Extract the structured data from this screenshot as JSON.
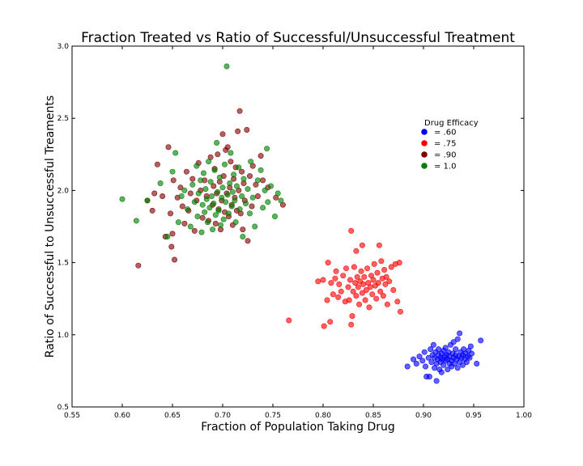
{
  "chart_data": {
    "type": "scatter",
    "title": "Fraction Treated vs Ratio of Successful/Unsuccessful Treatment",
    "xlabel": "Fraction of Population Taking Drug",
    "ylabel": "Ratio of Successful to Unsuccessful Treaments",
    "xlim": [
      0.55,
      1.0
    ],
    "ylim": [
      0.5,
      3.0
    ],
    "xticks": [
      "0.55",
      "0.60",
      "0.65",
      "0.70",
      "0.75",
      "0.80",
      "0.85",
      "0.90",
      "0.95",
      "1.00"
    ],
    "yticks": [
      "0.5",
      "1.0",
      "1.5",
      "2.0",
      "2.5",
      "3.0"
    ],
    "grid": false,
    "legend": {
      "title": "Drug Efficacy",
      "position": "upper-right-inside",
      "entries": [
        "= .60",
        "= .75",
        "= .90",
        "= 1.0"
      ]
    },
    "series": [
      {
        "name": "= .60",
        "color": "#0000ff",
        "points": [
          [
            0.884,
            0.78
          ],
          [
            0.89,
            0.83
          ],
          [
            0.893,
            0.8
          ],
          [
            0.896,
            0.85
          ],
          [
            0.899,
            0.82
          ],
          [
            0.901,
            0.88
          ],
          [
            0.902,
            0.78
          ],
          [
            0.903,
            0.71
          ],
          [
            0.905,
            0.84
          ],
          [
            0.906,
            0.71
          ],
          [
            0.907,
            0.9
          ],
          [
            0.908,
            0.81
          ],
          [
            0.909,
            0.86
          ],
          [
            0.91,
            0.93
          ],
          [
            0.911,
            0.77
          ],
          [
            0.911,
            0.84
          ],
          [
            0.912,
            0.88
          ],
          [
            0.913,
            0.8
          ],
          [
            0.913,
            0.68
          ],
          [
            0.914,
            0.83
          ],
          [
            0.915,
            0.86
          ],
          [
            0.915,
            0.9
          ],
          [
            0.916,
            0.76
          ],
          [
            0.917,
            0.84
          ],
          [
            0.917,
            0.81
          ],
          [
            0.918,
            0.87
          ],
          [
            0.918,
            0.74
          ],
          [
            0.919,
            0.83
          ],
          [
            0.92,
            0.89
          ],
          [
            0.92,
            0.79
          ],
          [
            0.921,
            0.85
          ],
          [
            0.922,
            0.82
          ],
          [
            0.922,
            0.91
          ],
          [
            0.923,
            0.86
          ],
          [
            0.924,
            0.76
          ],
          [
            0.924,
            0.83
          ],
          [
            0.925,
            0.88
          ],
          [
            0.926,
            0.8
          ],
          [
            0.926,
            0.85
          ],
          [
            0.927,
            0.93
          ],
          [
            0.928,
            0.82
          ],
          [
            0.928,
            0.78
          ],
          [
            0.929,
            0.87
          ],
          [
            0.93,
            0.84
          ],
          [
            0.93,
            0.95
          ],
          [
            0.931,
            0.8
          ],
          [
            0.932,
            0.86
          ],
          [
            0.932,
            0.9
          ],
          [
            0.933,
            0.83
          ],
          [
            0.934,
            0.77
          ],
          [
            0.934,
            0.97
          ],
          [
            0.935,
            0.85
          ],
          [
            0.936,
            0.81
          ],
          [
            0.936,
            1.01
          ],
          [
            0.937,
            0.88
          ],
          [
            0.938,
            0.84
          ],
          [
            0.939,
            0.79
          ],
          [
            0.939,
            0.86
          ],
          [
            0.94,
            0.9
          ],
          [
            0.941,
            0.83
          ],
          [
            0.942,
            0.87
          ],
          [
            0.943,
            0.81
          ],
          [
            0.944,
            0.85
          ],
          [
            0.945,
            0.89
          ],
          [
            0.946,
            0.84
          ],
          [
            0.947,
            0.92
          ],
          [
            0.948,
            0.87
          ],
          [
            0.953,
            0.8
          ],
          [
            0.957,
            0.96
          ]
        ]
      },
      {
        "name": "= .75",
        "color": "#ff0000",
        "points": [
          [
            0.766,
            1.1
          ],
          [
            0.795,
            1.37
          ],
          [
            0.8,
            1.38
          ],
          [
            0.801,
            1.06
          ],
          [
            0.804,
            1.24
          ],
          [
            0.805,
            1.5
          ],
          [
            0.807,
            1.09
          ],
          [
            0.808,
            1.36
          ],
          [
            0.81,
            1.28
          ],
          [
            0.812,
            1.39
          ],
          [
            0.813,
            1.44
          ],
          [
            0.815,
            1.26
          ],
          [
            0.816,
            1.35
          ],
          [
            0.818,
            1.3
          ],
          [
            0.82,
            1.41
          ],
          [
            0.822,
            1.23
          ],
          [
            0.823,
            1.46
          ],
          [
            0.825,
            1.33
          ],
          [
            0.826,
            1.24
          ],
          [
            0.827,
            1.38
          ],
          [
            0.828,
            1.72
          ],
          [
            0.828,
            1.07
          ],
          [
            0.829,
            1.13
          ],
          [
            0.83,
            1.3
          ],
          [
            0.831,
            1.47
          ],
          [
            0.832,
            1.36
          ],
          [
            0.833,
            1.27
          ],
          [
            0.833,
            1.58
          ],
          [
            0.834,
            1.4
          ],
          [
            0.835,
            1.33
          ],
          [
            0.836,
            1.21
          ],
          [
            0.837,
            1.37
          ],
          [
            0.838,
            1.44
          ],
          [
            0.839,
            1.29
          ],
          [
            0.839,
            1.62
          ],
          [
            0.84,
            1.35
          ],
          [
            0.841,
            1.4
          ],
          [
            0.842,
            1.24
          ],
          [
            0.843,
            1.31
          ],
          [
            0.844,
            1.46
          ],
          [
            0.845,
            1.36
          ],
          [
            0.846,
            1.19
          ],
          [
            0.847,
            1.33
          ],
          [
            0.848,
            1.41
          ],
          [
            0.849,
            1.28
          ],
          [
            0.85,
            1.38
          ],
          [
            0.851,
            1.49
          ],
          [
            0.852,
            1.34
          ],
          [
            0.853,
            1.25
          ],
          [
            0.854,
            1.43
          ],
          [
            0.855,
            1.36
          ],
          [
            0.856,
            1.62
          ],
          [
            0.857,
            1.3
          ],
          [
            0.858,
            1.51
          ],
          [
            0.859,
            1.39
          ],
          [
            0.86,
            1.27
          ],
          [
            0.861,
            1.45
          ],
          [
            0.862,
            1.35
          ],
          [
            0.863,
            1.4
          ],
          [
            0.864,
            1.21
          ],
          [
            0.866,
            1.37
          ],
          [
            0.868,
            1.47
          ],
          [
            0.87,
            1.31
          ],
          [
            0.872,
            1.49
          ],
          [
            0.874,
            1.23
          ],
          [
            0.876,
            1.5
          ],
          [
            0.877,
            1.16
          ]
        ]
      },
      {
        "name": "= .90",
        "color": "#800000",
        "points": [
          [
            0.616,
            1.48
          ],
          [
            0.625,
            1.93
          ],
          [
            0.63,
            1.86
          ],
          [
            0.632,
            1.98
          ],
          [
            0.635,
            2.18
          ],
          [
            0.64,
            1.96
          ],
          [
            0.643,
            1.68
          ],
          [
            0.646,
            2.3
          ],
          [
            0.648,
            1.84
          ],
          [
            0.649,
            1.61
          ],
          [
            0.65,
            1.7
          ],
          [
            0.651,
            2.07
          ],
          [
            0.652,
            1.52
          ],
          [
            0.655,
            1.95
          ],
          [
            0.658,
            2.02
          ],
          [
            0.66,
            1.89
          ],
          [
            0.662,
            1.77
          ],
          [
            0.664,
            2.13
          ],
          [
            0.666,
            1.86
          ],
          [
            0.668,
            1.98
          ],
          [
            0.67,
            2.08
          ],
          [
            0.672,
            1.72
          ],
          [
            0.674,
            1.93
          ],
          [
            0.676,
            2.19
          ],
          [
            0.678,
            2.0
          ],
          [
            0.68,
            1.81
          ],
          [
            0.682,
            2.07
          ],
          [
            0.684,
            1.96
          ],
          [
            0.686,
            1.79
          ],
          [
            0.688,
            2.23
          ],
          [
            0.69,
            1.9
          ],
          [
            0.691,
            2.03
          ],
          [
            0.692,
            2.15
          ],
          [
            0.693,
            1.77
          ],
          [
            0.694,
            1.98
          ],
          [
            0.695,
            2.25
          ],
          [
            0.696,
            1.87
          ],
          [
            0.697,
            2.06
          ],
          [
            0.698,
            1.73
          ],
          [
            0.699,
            1.93
          ],
          [
            0.7,
            2.39
          ],
          [
            0.701,
            2.1
          ],
          [
            0.702,
            1.85
          ],
          [
            0.703,
            2.28
          ],
          [
            0.704,
            1.98
          ],
          [
            0.705,
            2.3
          ],
          [
            0.706,
            1.82
          ],
          [
            0.707,
            2.02
          ],
          [
            0.708,
            2.2
          ],
          [
            0.709,
            1.9
          ],
          [
            0.71,
            1.76
          ],
          [
            0.711,
            2.08
          ],
          [
            0.712,
            1.95
          ],
          [
            0.713,
            2.16
          ],
          [
            0.714,
            1.86
          ],
          [
            0.715,
            2.41
          ],
          [
            0.716,
            2.0
          ],
          [
            0.717,
            2.55
          ],
          [
            0.718,
            1.84
          ],
          [
            0.719,
            2.13
          ],
          [
            0.72,
            1.73
          ],
          [
            0.721,
            2.05
          ],
          [
            0.722,
            1.93
          ],
          [
            0.724,
            2.42
          ],
          [
            0.725,
            1.65
          ],
          [
            0.727,
            2.1
          ],
          [
            0.729,
            1.89
          ],
          [
            0.73,
            2.17
          ],
          [
            0.733,
            2.04
          ],
          [
            0.735,
            1.96
          ],
          [
            0.738,
            2.24
          ],
          [
            0.74,
            2.07
          ],
          [
            0.745,
            2.02
          ],
          [
            0.753,
            1.95
          ],
          [
            0.76,
            1.9
          ]
        ]
      },
      {
        "name": "= 1.0",
        "color": "#008000",
        "points": [
          [
            0.6,
            1.94
          ],
          [
            0.614,
            1.79
          ],
          [
            0.625,
            1.93
          ],
          [
            0.638,
            2.05
          ],
          [
            0.645,
            1.68
          ],
          [
            0.65,
            2.13
          ],
          [
            0.653,
            2.26
          ],
          [
            0.656,
            1.78
          ],
          [
            0.659,
            1.96
          ],
          [
            0.662,
            2.0
          ],
          [
            0.665,
            1.87
          ],
          [
            0.668,
            1.75
          ],
          [
            0.67,
            2.04
          ],
          [
            0.672,
            1.92
          ],
          [
            0.674,
            2.17
          ],
          [
            0.675,
            1.82
          ],
          [
            0.676,
            1.98
          ],
          [
            0.678,
            2.07
          ],
          [
            0.679,
            1.71
          ],
          [
            0.68,
            1.9
          ],
          [
            0.681,
            2.12
          ],
          [
            0.682,
            1.85
          ],
          [
            0.683,
            2.01
          ],
          [
            0.684,
            1.94
          ],
          [
            0.685,
            1.78
          ],
          [
            0.686,
            2.2
          ],
          [
            0.687,
            1.88
          ],
          [
            0.688,
            2.06
          ],
          [
            0.689,
            1.96
          ],
          [
            0.69,
            1.73
          ],
          [
            0.691,
            1.91
          ],
          [
            0.692,
            2.14
          ],
          [
            0.693,
            1.83
          ],
          [
            0.694,
            2.33
          ],
          [
            0.695,
            1.99
          ],
          [
            0.696,
            1.86
          ],
          [
            0.697,
            2.09
          ],
          [
            0.698,
            1.76
          ],
          [
            0.699,
            1.95
          ],
          [
            0.7,
            2.02
          ],
          [
            0.701,
            1.8
          ],
          [
            0.702,
            2.18
          ],
          [
            0.703,
            1.92
          ],
          [
            0.704,
            2.86
          ],
          [
            0.705,
            1.97
          ],
          [
            0.706,
            1.84
          ],
          [
            0.707,
            2.05
          ],
          [
            0.708,
            2.26
          ],
          [
            0.709,
            1.89
          ],
          [
            0.71,
            1.99
          ],
          [
            0.711,
            2.11
          ],
          [
            0.712,
            1.93
          ],
          [
            0.713,
            1.78
          ],
          [
            0.714,
            2.03
          ],
          [
            0.716,
            2.16
          ],
          [
            0.717,
            1.87
          ],
          [
            0.719,
            1.96
          ],
          [
            0.72,
            1.68
          ],
          [
            0.721,
            2.08
          ],
          [
            0.723,
            1.91
          ],
          [
            0.725,
            2.01
          ],
          [
            0.727,
            1.84
          ],
          [
            0.728,
            2.2
          ],
          [
            0.73,
            1.95
          ],
          [
            0.732,
            1.75
          ],
          [
            0.735,
            2.07
          ],
          [
            0.738,
            2.14
          ],
          [
            0.74,
            1.88
          ],
          [
            0.742,
            2.0
          ],
          [
            0.744,
            2.29
          ],
          [
            0.745,
            1.92
          ],
          [
            0.748,
            2.03
          ],
          [
            0.752,
            1.82
          ],
          [
            0.755,
            1.98
          ],
          [
            0.758,
            1.93
          ]
        ]
      }
    ]
  }
}
